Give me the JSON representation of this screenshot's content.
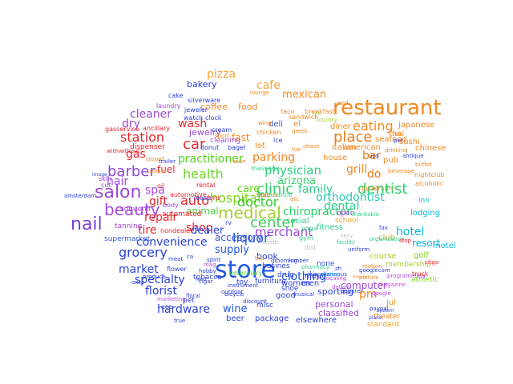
{
  "wordcloud": {
    "words": [
      {
        "text": "restaurant",
        "color": "#f08a24"
      },
      {
        "text": "store",
        "color": "#1e5adf"
      },
      {
        "text": "salon",
        "color": "#9b4ad3"
      },
      {
        "text": "nail",
        "color": "#7b3fd6"
      },
      {
        "text": "beauty",
        "color": "#a64ce0"
      },
      {
        "text": "medical",
        "color": "#a4cf2e"
      },
      {
        "text": "place",
        "color": "#f07a18"
      },
      {
        "text": "clinic",
        "color": "#2ecf6a"
      },
      {
        "text": "dentist",
        "color": "#2ecf6a"
      },
      {
        "text": "hospital",
        "color": "#7fd31e"
      },
      {
        "text": "car",
        "color": "#e8262c"
      },
      {
        "text": "auto",
        "color": "#e8262c"
      },
      {
        "text": "barber",
        "color": "#8e47d6"
      },
      {
        "text": "center",
        "color": "#3fd060"
      },
      {
        "text": "station",
        "color": "#e4262c"
      },
      {
        "text": "physician",
        "color": "#2fd080"
      },
      {
        "text": "doctor",
        "color": "#36cd2b"
      },
      {
        "text": "health",
        "color": "#6ad424"
      },
      {
        "text": "liquor",
        "color": "#1e5adf"
      },
      {
        "text": "grocery",
        "color": "#2c3fd8"
      },
      {
        "text": "eating",
        "color": "#f08a24"
      },
      {
        "text": "hotel",
        "color": "#0bb5e0"
      },
      {
        "text": "cafe",
        "color": "#f3a53a"
      },
      {
        "text": "pizza",
        "color": "#f3a53a"
      },
      {
        "text": "mexican",
        "color": "#f08a24"
      },
      {
        "text": "cleaner",
        "color": "#9b4ad3"
      },
      {
        "text": "hair",
        "color": "#a64ce0"
      },
      {
        "text": "spa",
        "color": "#a64ce0"
      },
      {
        "text": "dry",
        "color": "#9b4ad3"
      },
      {
        "text": "wash",
        "color": "#e8262c"
      },
      {
        "text": "gas",
        "color": "#e4262c"
      },
      {
        "text": "fuel",
        "color": "#e4262c"
      },
      {
        "text": "repair",
        "color": "#e8262c"
      },
      {
        "text": "tire",
        "color": "#e8262c"
      },
      {
        "text": "shop",
        "color": "#e8262c"
      },
      {
        "text": "gift",
        "color": "#e8262c"
      },
      {
        "text": "practitioner",
        "color": "#53d11f"
      },
      {
        "text": "care",
        "color": "#6ad424"
      },
      {
        "text": "animal",
        "color": "#4fd048"
      },
      {
        "text": "arizona",
        "color": "#3fcf70"
      },
      {
        "text": "family",
        "color": "#2ecf8a"
      },
      {
        "text": "orthodontist",
        "color": "#2cc7b0"
      },
      {
        "text": "chiropractor",
        "color": "#2ecf6a"
      },
      {
        "text": "dental",
        "color": "#2ecf8a"
      },
      {
        "text": "grill",
        "color": "#f08a24"
      },
      {
        "text": "bar",
        "color": "#f07a18"
      },
      {
        "text": "do",
        "color": "#f07a18"
      },
      {
        "text": "parking",
        "color": "#f0841f"
      },
      {
        "text": "merchant",
        "color": "#9a4ad6"
      },
      {
        "text": "dealer",
        "color": "#2c3fd8"
      },
      {
        "text": "accessory",
        "color": "#3a56d8"
      },
      {
        "text": "convenience",
        "color": "#2a43d6"
      },
      {
        "text": "market",
        "color": "#2a43d6"
      },
      {
        "text": "specialty",
        "color": "#2c3fd8"
      },
      {
        "text": "supply",
        "color": "#1e5adf"
      },
      {
        "text": "florist",
        "color": "#2c3fd8"
      },
      {
        "text": "hardware",
        "color": "#2c3fd8"
      },
      {
        "text": "wine",
        "color": "#1e5adf"
      },
      {
        "text": "clothing",
        "color": "#1e5adf"
      },
      {
        "text": "book",
        "color": "#2c3fd8"
      },
      {
        "text": "computer",
        "color": "#9a4ad6"
      },
      {
        "text": "pm",
        "color": "#f08a24"
      },
      {
        "text": "resort",
        "color": "#0bb5e0"
      },
      {
        "text": "motel",
        "color": "#0bb5e0"
      },
      {
        "text": "lodging",
        "color": "#0bb5e0"
      },
      {
        "text": "club",
        "color": "#f0a030"
      },
      {
        "text": "golf",
        "color": "#7dd31e"
      },
      {
        "text": "course",
        "color": "#a8cf2e"
      },
      {
        "text": "coffee",
        "color": "#f08a24"
      },
      {
        "text": "food",
        "color": "#f08a24"
      },
      {
        "text": "bakery",
        "color": "#2c3fd8"
      },
      {
        "text": "jewelry",
        "color": "#9b4ad3"
      },
      {
        "text": "fast",
        "color": "#f08a24"
      },
      {
        "text": "deli",
        "color": "#3a56d8"
      },
      {
        "text": "el",
        "color": "#f08a24"
      },
      {
        "text": "diner",
        "color": "#f08a24"
      },
      {
        "text": "italian",
        "color": "#f08a24"
      },
      {
        "text": "american",
        "color": "#f08a24"
      },
      {
        "text": "chinese",
        "color": "#f08a24"
      },
      {
        "text": "thai",
        "color": "#f08a24"
      },
      {
        "text": "sushi",
        "color": "#f08a24"
      },
      {
        "text": "japanese",
        "color": "#f08a24"
      },
      {
        "text": "seafood",
        "color": "#f08a24"
      },
      {
        "text": "pub",
        "color": "#f08a24"
      },
      {
        "text": "house",
        "color": "#f08a24"
      },
      {
        "text": "lot",
        "color": "#f08a24"
      },
      {
        "text": "social",
        "color": "#2ecf8a"
      },
      {
        "text": "fitness",
        "color": "#2ecf8a"
      },
      {
        "text": "sporting",
        "color": "#2c3fd8"
      },
      {
        "text": "good",
        "color": "#2c3fd8"
      },
      {
        "text": "women",
        "color": "#2c3fd8"
      },
      {
        "text": "men",
        "color": "#2c3fd8"
      },
      {
        "text": "personal",
        "color": "#9a4ad6"
      },
      {
        "text": "classified",
        "color": "#9a4ad6"
      },
      {
        "text": "elsewhere",
        "color": "#2c3fd8"
      },
      {
        "text": "package",
        "color": "#2c3fd8"
      },
      {
        "text": "beer",
        "color": "#2c3fd8"
      },
      {
        "text": "jul",
        "color": "#f08a24"
      },
      {
        "text": "theater",
        "color": "#f08a24"
      },
      {
        "text": "standard",
        "color": "#f0a030"
      },
      {
        "text": "athletic",
        "color": "#7dd31e"
      },
      {
        "text": "membership",
        "color": "#a8cf2e"
      },
      {
        "text": "inn",
        "color": "#0bb5e0"
      },
      {
        "text": "tanning",
        "color": "#9b4ad3"
      },
      {
        "text": "souvenir",
        "color": "#9b4ad3"
      },
      {
        "text": "automated",
        "color": "#e8262c"
      },
      {
        "text": "supermarket",
        "color": "#3a56d8"
      },
      {
        "text": "pet",
        "color": "#2c3fd8"
      },
      {
        "text": "furniture",
        "color": "#2c3fd8"
      },
      {
        "text": "tobacco",
        "color": "#2c3fd8"
      },
      {
        "text": "toy",
        "color": "#2c3fd8"
      },
      {
        "text": "shoe",
        "color": "#2c3fd8"
      },
      {
        "text": "music",
        "color": "#2c3fd8"
      },
      {
        "text": "drug",
        "color": "#2c3fd8"
      },
      {
        "text": "misc",
        "color": "#2c3fd8"
      },
      {
        "text": "busines",
        "color": "#2c3fd8"
      },
      {
        "text": "none",
        "color": "#3a56d8"
      },
      {
        "text": "yoga",
        "color": "#2ecf8a"
      },
      {
        "text": "gym",
        "color": "#2ecf8a"
      },
      {
        "text": "cleaning",
        "color": "#9b4ad3"
      },
      {
        "text": "ancillary",
        "color": "#e8262c"
      },
      {
        "text": "dispenser",
        "color": "#e8262c"
      },
      {
        "text": "jeweler",
        "color": "#2c3fd8"
      },
      {
        "text": "silverware",
        "color": "#2c3fd8"
      },
      {
        "text": "watch",
        "color": "#2c3fd8"
      },
      {
        "text": "clock",
        "color": "#2c3fd8"
      },
      {
        "text": "cake",
        "color": "#2c3fd8"
      },
      {
        "text": "laundry",
        "color": "#9b4ad3"
      },
      {
        "text": "gasservice",
        "color": "#e8262c"
      },
      {
        "text": "withwithout",
        "color": "#e8262c"
      },
      {
        "text": "oxxo",
        "color": "#2c3fd8"
      },
      {
        "text": "ace",
        "color": "#2c3fd8"
      },
      {
        "text": "true",
        "color": "#2c3fd8"
      },
      {
        "text": "flower",
        "color": "#2c3fd8"
      },
      {
        "text": "produce",
        "color": "#2c3fd8"
      },
      {
        "text": "meat",
        "color": "#2c3fd8"
      },
      {
        "text": "marketing",
        "color": "#c04adf"
      },
      {
        "text": "floral",
        "color": "#2c3fd8"
      },
      {
        "text": "amsterdam",
        "color": "#2c3fd8"
      },
      {
        "text": "image",
        "color": "#2c3fd8"
      },
      {
        "text": "cut",
        "color": "#9b4ad3"
      },
      {
        "text": "skin",
        "color": "#9b4ad3"
      },
      {
        "text": "body",
        "color": "#9b4ad3"
      },
      {
        "text": "nondealer",
        "color": "#e8262c"
      },
      {
        "text": "automotive",
        "color": "#e8262c"
      },
      {
        "text": "oil",
        "color": "#e8262c"
      },
      {
        "text": "rental",
        "color": "#e8262c"
      },
      {
        "text": "lease",
        "color": "#2c3fd8"
      },
      {
        "text": "ford",
        "color": "#e8262c"
      },
      {
        "text": "rv",
        "color": "#2c3fd8"
      },
      {
        "text": "veterinary",
        "color": "#4fd048"
      },
      {
        "text": "massage",
        "color": "#2ecf8a"
      },
      {
        "text": "bagel",
        "color": "#2c3fd8"
      },
      {
        "text": "cream",
        "color": "#2c3fd8"
      },
      {
        "text": "donut",
        "color": "#2c3fd8"
      },
      {
        "text": "ice",
        "color": "#2c3fd8"
      },
      {
        "text": "chicken",
        "color": "#f08a24"
      },
      {
        "text": "sandwich",
        "color": "#f08a24"
      },
      {
        "text": "breakfast",
        "color": "#f08a24"
      },
      {
        "text": "taco",
        "color": "#f08a24"
      },
      {
        "text": "greek",
        "color": "#f08a24"
      },
      {
        "text": "wing",
        "color": "#f08a24"
      },
      {
        "text": "kfc",
        "color": "#f08a24"
      },
      {
        "text": "buffet",
        "color": "#f08a24"
      },
      {
        "text": "nightclub",
        "color": "#f08a24"
      },
      {
        "text": "alcoholic",
        "color": "#f08a24"
      },
      {
        "text": "beverage",
        "color": "#f08a24"
      },
      {
        "text": "drinking",
        "color": "#f08a24"
      },
      {
        "text": "lounge",
        "color": "#f08a24"
      },
      {
        "text": "sport",
        "color": "#f08a24"
      },
      {
        "text": "pizzerium",
        "color": "#f08a24"
      },
      {
        "text": "open",
        "color": "#9b4ad3"
      },
      {
        "text": "school",
        "color": "#f0a030"
      },
      {
        "text": "charitable",
        "color": "#2ecf8a"
      },
      {
        "text": "organization",
        "color": "#2ecf8a"
      },
      {
        "text": "fax",
        "color": "#2c3fd8"
      },
      {
        "text": "serv",
        "color": "#bbbbbb"
      },
      {
        "text": "dist",
        "color": "#bbbbbb"
      },
      {
        "text": "credit",
        "color": "#bbbbbb"
      },
      {
        "text": "pharmacy",
        "color": "#2ecf8a"
      },
      {
        "text": "facility",
        "color": "#2ecf8a"
      },
      {
        "text": "uniform",
        "color": "#2c3fd8"
      },
      {
        "text": "motion",
        "color": "#f08a24"
      },
      {
        "text": "picture",
        "color": "#f08a24"
      },
      {
        "text": "movie",
        "color": "#f08a24"
      },
      {
        "text": "magazine",
        "color": "#c04adf"
      },
      {
        "text": "google",
        "color": "#c04adf"
      },
      {
        "text": "googlecom",
        "color": "#2c3fd8"
      },
      {
        "text": "programming",
        "color": "#c04adf"
      },
      {
        "text": "localing",
        "color": "#c04adf"
      },
      {
        "text": "datum",
        "color": "#c04adf"
      },
      {
        "text": "musical",
        "color": "#2c3fd8"
      },
      {
        "text": "instrument",
        "color": "#2c3fd8"
      },
      {
        "text": "outdoor",
        "color": "#2c3fd8"
      },
      {
        "text": "discount",
        "color": "#2c3fd8"
      },
      {
        "text": "hobby",
        "color": "#2c3fd8"
      },
      {
        "text": "spirit",
        "color": "#2c3fd8"
      },
      {
        "text": "cigar",
        "color": "#2c3fd8"
      },
      {
        "text": "bicycle",
        "color": "#2c3fd8"
      },
      {
        "text": "feed",
        "color": "#2c3fd8"
      },
      {
        "text": "grooming",
        "color": "#2c3fd8"
      },
      {
        "text": "lumber",
        "color": "#2c3fd8"
      },
      {
        "text": "miscellaneous",
        "color": "#2c3fd8"
      },
      {
        "text": "apparel",
        "color": "#2c3fd8"
      },
      {
        "text": "paypal",
        "color": "#2c3fd8"
      },
      {
        "text": "piano",
        "color": "#2c3fd8"
      },
      {
        "text": "system",
        "color": "#2c3fd8"
      },
      {
        "text": "wed",
        "color": "#f08a24"
      },
      {
        "text": "tue",
        "color": "#f08a24"
      },
      {
        "text": "chase",
        "color": "#f08a24"
      },
      {
        "text": "soon",
        "color": "#f08a24"
      },
      {
        "text": "closed",
        "color": "#f08a24"
      },
      {
        "text": "caterer",
        "color": "#f08a24"
      },
      {
        "text": "trailer",
        "color": "#2c3fd8"
      },
      {
        "text": "truck",
        "color": "#e8262c"
      },
      {
        "text": "citgo",
        "color": "#e8262c"
      },
      {
        "text": "stop",
        "color": "#e8262c"
      },
      {
        "text": "rec",
        "color": "#a8cf2e"
      },
      {
        "text": "country",
        "color": "#a8cf2e"
      },
      {
        "text": "casino",
        "color": "#0bb5e0"
      },
      {
        "text": "zh",
        "color": "#2c3fd8"
      },
      {
        "text": "ca",
        "color": "#2c3fd8"
      },
      {
        "text": "mag",
        "color": "#c04adf"
      },
      {
        "text": "thu",
        "color": "#f08a24"
      },
      {
        "text": "pet",
        "color": "#2c3fd8"
      },
      {
        "text": "antique",
        "color": "#2c3fd8"
      },
      {
        "text": "ups",
        "color": "#2c3fd8"
      },
      {
        "text": "etc",
        "color": "#f08a24"
      },
      {
        "text": "bbq",
        "color": "#f08a24"
      },
      {
        "text": "tavern",
        "color": "#f08a24"
      },
      {
        "text": "ambulance",
        "color": "#2ecf8a"
      }
    ]
  }
}
